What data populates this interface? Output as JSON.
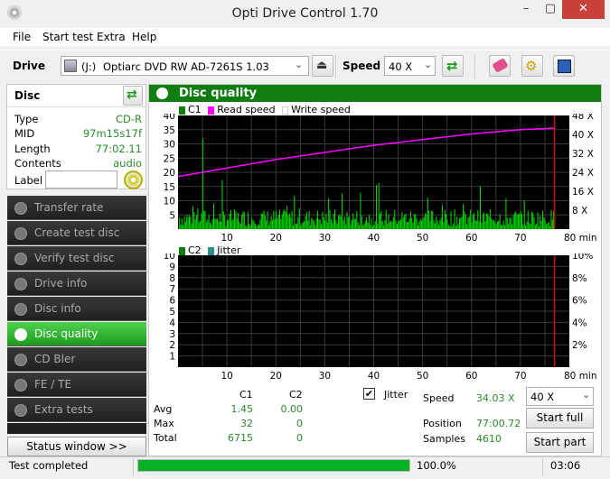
{
  "window": {
    "title": "Opti Drive Control 1.70",
    "min": "–",
    "max": "▢",
    "close": "✕"
  },
  "menu": [
    "File",
    "Start test",
    "Extra",
    "Help"
  ],
  "toolbar": {
    "drive_label": "Drive",
    "drive_letter": "(J:)",
    "drive_name": "Optiarc DVD RW AD-7261S 1.03",
    "speed_label": "Speed",
    "speed_value": "40 X"
  },
  "disc": {
    "header": "Disc",
    "rows": [
      {
        "k": "Type",
        "v": "CD-R"
      },
      {
        "k": "MID",
        "v": "97m15s17f"
      },
      {
        "k": "Length",
        "v": "77:02.11"
      },
      {
        "k": "Contents",
        "v": "audio"
      }
    ],
    "label_key": "Label",
    "label_value": ""
  },
  "sidebar": [
    "Transfer rate",
    "Create test disc",
    "Verify test disc",
    "Drive info",
    "Disc info",
    "Disc quality",
    "CD Bler",
    "FE / TE",
    "Extra tests"
  ],
  "sidebar_active": "Disc quality",
  "status_window": "Status window >>",
  "main_title": "Disc quality",
  "legend1": {
    "c1": "C1",
    "read": "Read speed",
    "write": "Write speed"
  },
  "legend2": {
    "c2": "C2",
    "jitter": "Jitter"
  },
  "stats": {
    "col_c1": "C1",
    "col_c2": "C2",
    "rows": [
      {
        "k": "Avg",
        "c1": "1.45",
        "c2": "0.00"
      },
      {
        "k": "Max",
        "c1": "32",
        "c2": "0"
      },
      {
        "k": "Total",
        "c1": "6715",
        "c2": "0"
      }
    ]
  },
  "jitter_check": "Jitter",
  "speed": {
    "label": "Speed",
    "value": "34.03 X",
    "select": "40 X"
  },
  "position": {
    "label": "Position",
    "value": "77:00.72"
  },
  "samples": {
    "label": "Samples",
    "value": "4610"
  },
  "buttons": {
    "start_full": "Start full",
    "start_part": "Start part"
  },
  "status": {
    "text": "Test completed",
    "progress": "100.0%",
    "progress_fraction": 1.0,
    "time": "03:06"
  },
  "colors": {
    "green": "#0f7d0f",
    "c1": "#00e000",
    "read": "#ff00ff",
    "marker": "#d40000"
  },
  "chart_data": [
    {
      "type": "bar",
      "name": "C1",
      "x_range": [
        0,
        80
      ],
      "xlabel": "min",
      "y_range": [
        0,
        40
      ],
      "y_right_ticks": [
        "8 X",
        "16 X",
        "24 X",
        "32 X",
        "40 X",
        "48 X"
      ],
      "x_ticks": [
        "10",
        "20",
        "30",
        "40",
        "50",
        "60",
        "70",
        "80 min"
      ],
      "y_ticks": [
        "5",
        "10",
        "15",
        "20",
        "25",
        "30",
        "35",
        "40"
      ],
      "read_speed": {
        "x": [
          0,
          10,
          20,
          30,
          40,
          50,
          60,
          70,
          77
        ],
        "y": [
          18.5,
          21.5,
          24.5,
          27,
          29.5,
          31.5,
          33.5,
          35,
          35.5
        ]
      },
      "end_marker_x": 77
    },
    {
      "type": "bar",
      "name": "C2",
      "x_range": [
        0,
        80
      ],
      "y_range": [
        0,
        10
      ],
      "y_ticks": [
        "1",
        "2",
        "3",
        "4",
        "5",
        "6",
        "7",
        "8",
        "9",
        "10"
      ],
      "y_right_ticks": [
        "2%",
        "4%",
        "6%",
        "8%",
        "10%"
      ],
      "x_ticks": [
        "10",
        "20",
        "30",
        "40",
        "50",
        "60",
        "70",
        "80 min"
      ],
      "end_marker_x": 77
    }
  ]
}
